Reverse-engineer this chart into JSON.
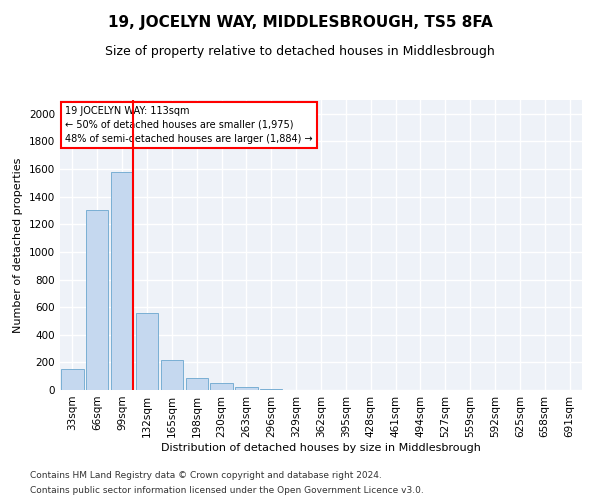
{
  "title": "19, JOCELYN WAY, MIDDLESBROUGH, TS5 8FA",
  "subtitle": "Size of property relative to detached houses in Middlesbrough",
  "xlabel": "Distribution of detached houses by size in Middlesbrough",
  "ylabel": "Number of detached properties",
  "footnote1": "Contains HM Land Registry data © Crown copyright and database right 2024.",
  "footnote2": "Contains public sector information licensed under the Open Government Licence v3.0.",
  "categories": [
    "33sqm",
    "66sqm",
    "99sqm",
    "132sqm",
    "165sqm",
    "198sqm",
    "230sqm",
    "263sqm",
    "296sqm",
    "329sqm",
    "362sqm",
    "395sqm",
    "428sqm",
    "461sqm",
    "494sqm",
    "527sqm",
    "559sqm",
    "592sqm",
    "625sqm",
    "658sqm",
    "691sqm"
  ],
  "values": [
    150,
    1300,
    1580,
    560,
    220,
    90,
    50,
    22,
    8,
    3,
    2,
    2,
    1,
    0,
    0,
    0,
    0,
    0,
    0,
    0,
    0
  ],
  "bar_color": "#c5d8ef",
  "bar_edge_color": "#7aafd4",
  "annotation_line1": "19 JOCELYN WAY: 113sqm",
  "annotation_line2": "← 50% of detached houses are smaller (1,975)",
  "annotation_line3": "48% of semi-detached houses are larger (1,884) →",
  "vline_x_index": 2.42,
  "vline_color": "red",
  "box_color": "red",
  "ylim": [
    0,
    2100
  ],
  "yticks": [
    0,
    200,
    400,
    600,
    800,
    1000,
    1200,
    1400,
    1600,
    1800,
    2000
  ],
  "background_color": "#eef2f8",
  "grid_color": "white",
  "title_fontsize": 11,
  "subtitle_fontsize": 9,
  "axis_fontsize": 8,
  "tick_fontsize": 7.5,
  "footnote_fontsize": 6.5
}
